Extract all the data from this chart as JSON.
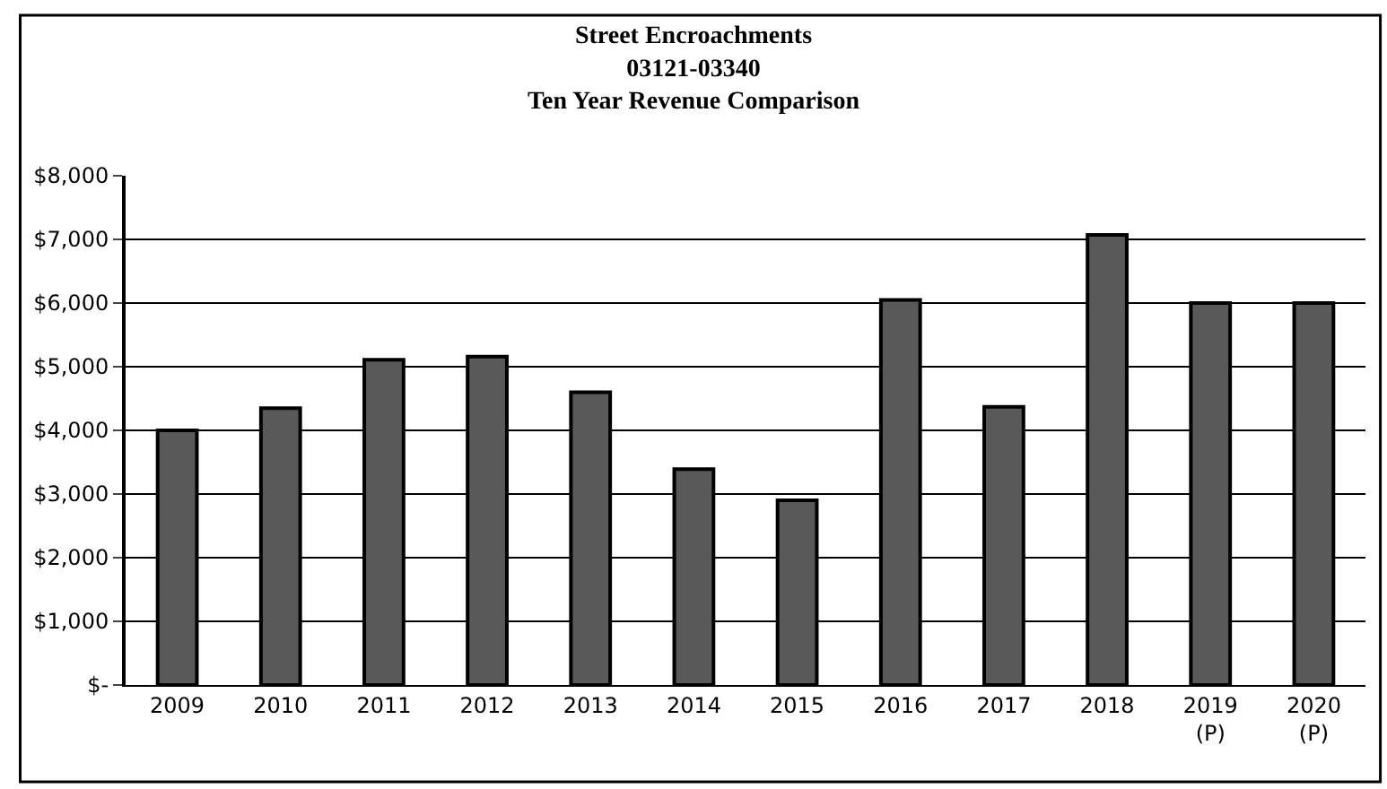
{
  "chart_data": {
    "type": "bar",
    "title": "Street Encroachments\n03121-03340\nTen Year Revenue Comparison",
    "categories": [
      "2009",
      "2010",
      "2011",
      "2012",
      "2013",
      "2014",
      "2015",
      "2016",
      "2017",
      "2018",
      "2019\n(P)",
      "2020\n(P)"
    ],
    "values": [
      4000,
      4350,
      5110,
      5160,
      4600,
      3390,
      2900,
      6050,
      4370,
      7070,
      6000,
      6000
    ],
    "color": "#595959",
    "ylim": [
      0,
      8000
    ],
    "yticks": [
      {
        "value": 0,
        "label": "$-"
      },
      {
        "value": 1000,
        "label": "$1,000"
      },
      {
        "value": 2000,
        "label": "$2,000"
      },
      {
        "value": 3000,
        "label": "$3,000"
      },
      {
        "value": 4000,
        "label": "$4,000"
      },
      {
        "value": 5000,
        "label": "$5,000"
      },
      {
        "value": 6000,
        "label": "$6,000"
      },
      {
        "value": 7000,
        "label": "$7,000"
      },
      {
        "value": 8000,
        "label": "$8,000"
      }
    ],
    "grid": "y"
  }
}
